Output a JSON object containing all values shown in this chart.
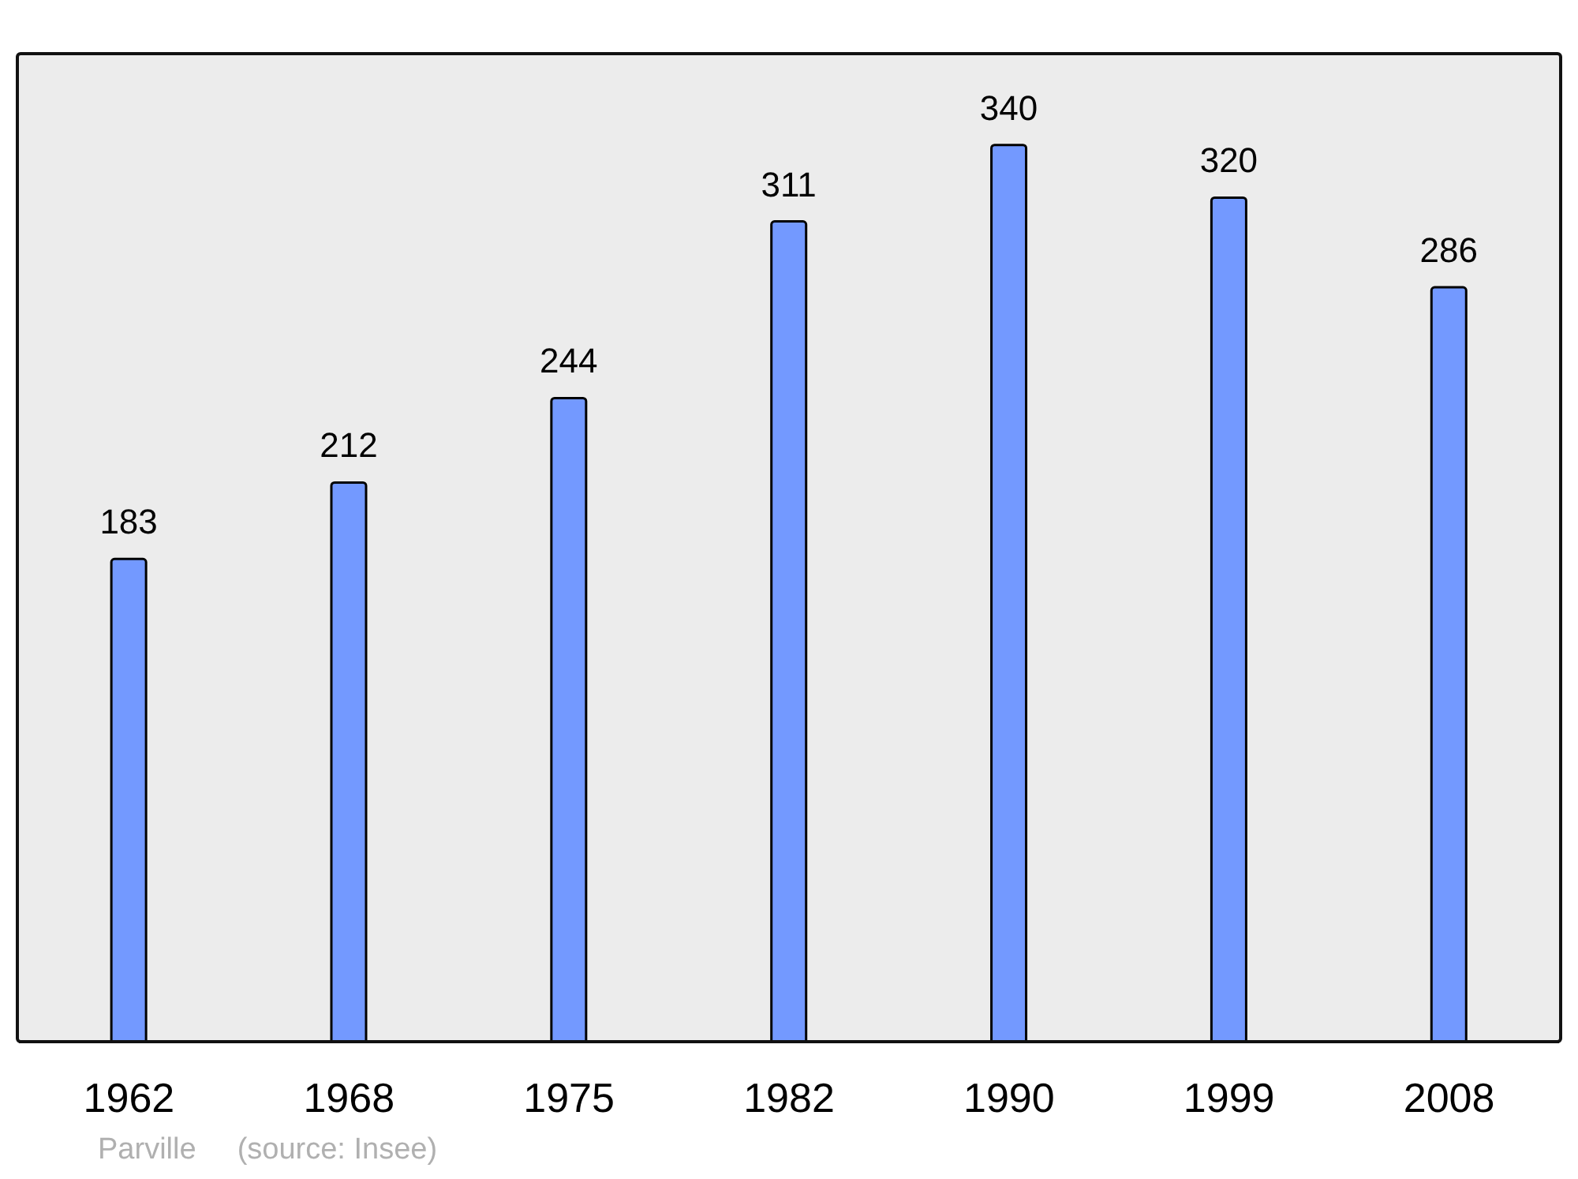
{
  "chart_data": {
    "type": "bar",
    "categories": [
      "1962",
      "1968",
      "1975",
      "1982",
      "1990",
      "1999",
      "2008"
    ],
    "values": [
      183,
      212,
      244,
      311,
      340,
      320,
      286
    ],
    "color": "#7399ff",
    "data_labels": true,
    "ylim": [
      0,
      374
    ],
    "annotations": [
      "Parville",
      "(source: Insee)"
    ]
  }
}
